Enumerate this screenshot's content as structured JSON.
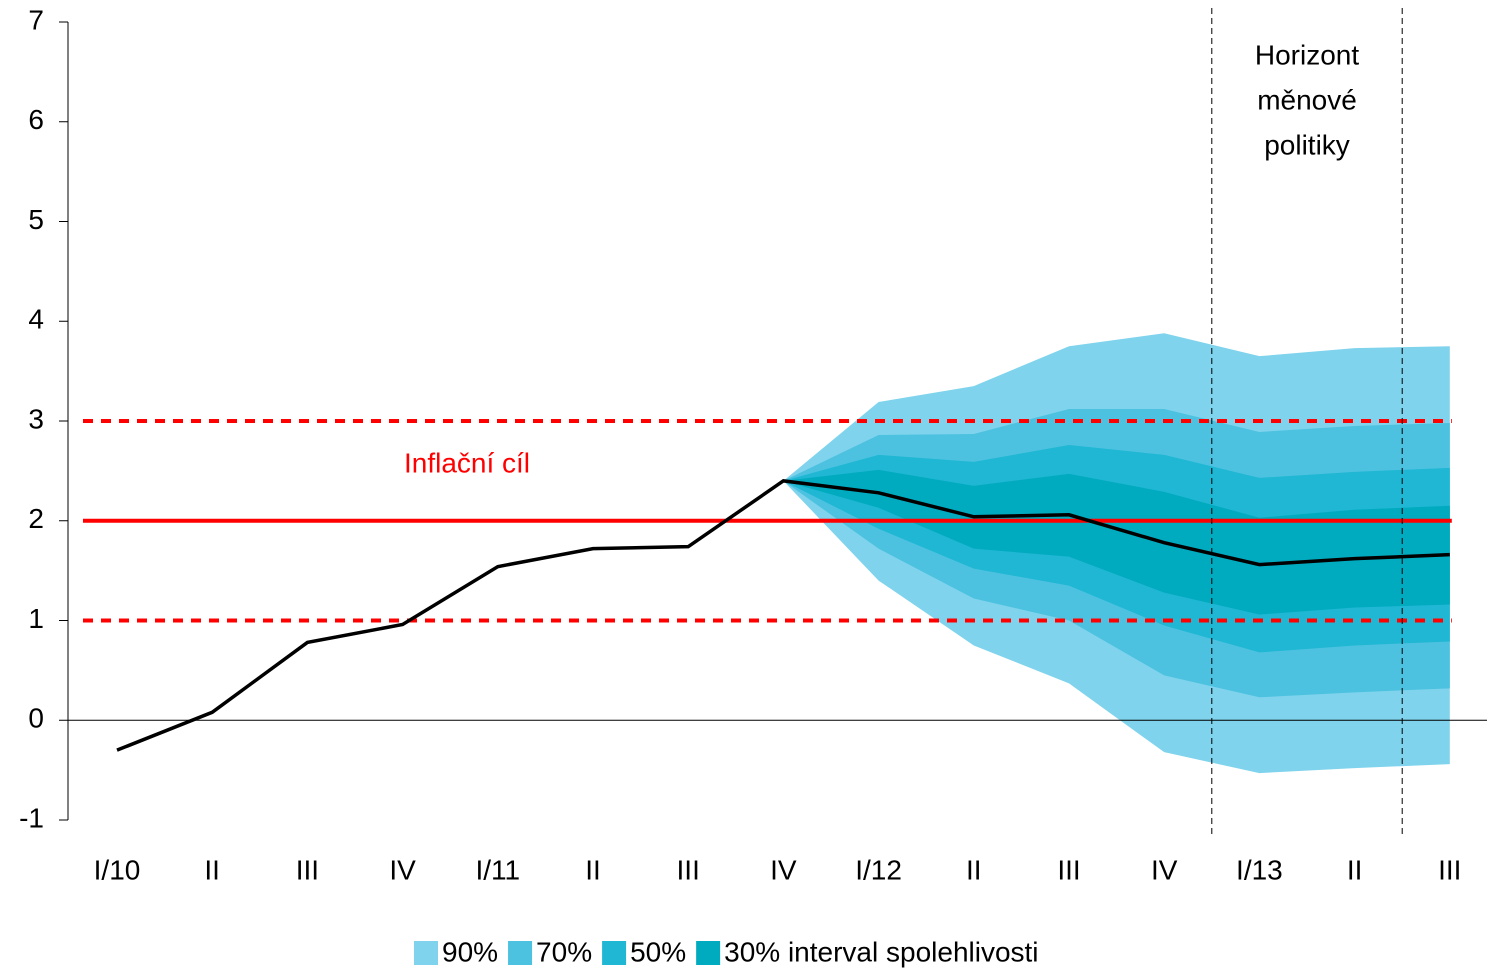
{
  "chart_data": {
    "type": "fan",
    "categories": [
      "I/10",
      "II",
      "III",
      "IV",
      "I/11",
      "II",
      "III",
      "IV",
      "I/12",
      "II",
      "III",
      "IV",
      "I/13",
      "II",
      "III"
    ],
    "series": [
      {
        "name": "central",
        "color": "#000000",
        "values": [
          -0.3,
          0.08,
          0.78,
          0.96,
          1.54,
          1.72,
          1.74,
          2.4,
          2.28,
          2.04,
          2.06,
          1.78,
          1.56,
          1.62,
          1.66
        ]
      }
    ],
    "bands": [
      {
        "name": "90%",
        "color": "#7fd3ec",
        "upper": [
          null,
          null,
          null,
          null,
          null,
          null,
          null,
          2.4,
          3.19,
          3.35,
          3.75,
          3.88,
          3.65,
          3.73,
          3.75
        ],
        "lower": [
          null,
          null,
          null,
          null,
          null,
          null,
          null,
          2.4,
          1.4,
          0.75,
          0.37,
          -0.32,
          -0.53,
          -0.48,
          -0.44
        ]
      },
      {
        "name": "70%",
        "color": "#4cc2e0",
        "upper": [
          null,
          null,
          null,
          null,
          null,
          null,
          null,
          2.4,
          2.86,
          2.87,
          3.12,
          3.12,
          2.89,
          2.95,
          2.98
        ],
        "lower": [
          null,
          null,
          null,
          null,
          null,
          null,
          null,
          2.4,
          1.72,
          1.22,
          1.0,
          0.45,
          0.23,
          0.28,
          0.32
        ]
      },
      {
        "name": "50%",
        "color": "#1fb7d3",
        "upper": [
          null,
          null,
          null,
          null,
          null,
          null,
          null,
          2.4,
          2.66,
          2.59,
          2.76,
          2.66,
          2.43,
          2.49,
          2.53
        ],
        "lower": [
          null,
          null,
          null,
          null,
          null,
          null,
          null,
          2.4,
          1.92,
          1.52,
          1.35,
          0.95,
          0.68,
          0.75,
          0.79
        ]
      },
      {
        "name": "30% interval spolehlivosti",
        "color": "#00aabf",
        "upper": [
          null,
          null,
          null,
          null,
          null,
          null,
          null,
          2.4,
          2.51,
          2.35,
          2.47,
          2.29,
          2.03,
          2.11,
          2.15
        ],
        "lower": [
          null,
          null,
          null,
          null,
          null,
          null,
          null,
          2.4,
          2.13,
          1.72,
          1.64,
          1.28,
          1.06,
          1.13,
          1.16
        ]
      }
    ],
    "target": {
      "label": "Inflační cíl",
      "value": 2,
      "lower": 1,
      "upper": 3,
      "color": "#ff0000"
    },
    "horizon_label": [
      "Horizont",
      "měnové",
      "politiky"
    ],
    "ylim": [
      -1,
      7
    ],
    "yticks": [
      -1,
      0,
      1,
      2,
      3,
      4,
      5,
      6,
      7
    ],
    "grid": false
  }
}
